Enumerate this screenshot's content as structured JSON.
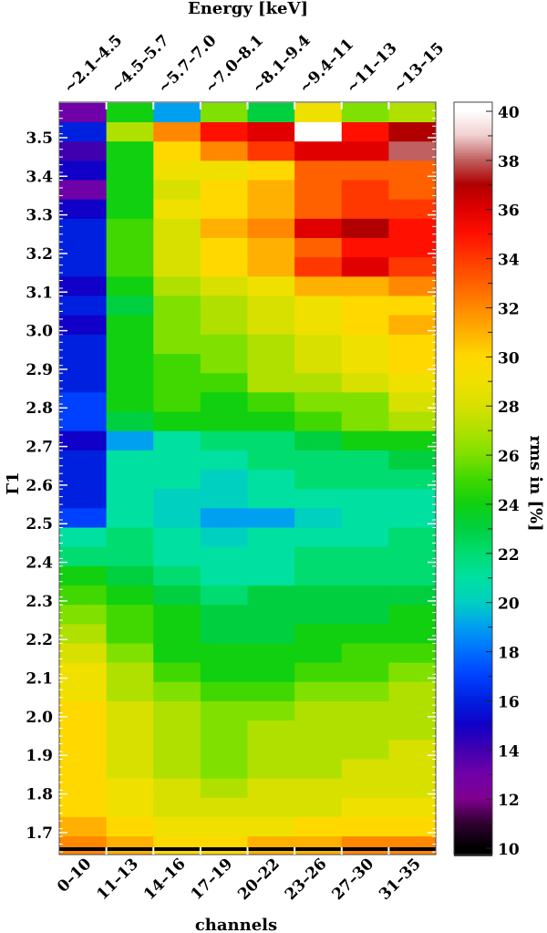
{
  "chart_data": {
    "type": "heatmap",
    "title": "",
    "xlabel": "channels",
    "x2label": "Energy [keV]",
    "ylabel": "Γ1",
    "colorbar_label": "rms in [%]",
    "x_categories": [
      "0–10",
      "11–13",
      "14–16",
      "17–19",
      "20–22",
      "23–26",
      "27–30",
      "31–35"
    ],
    "x2_categories": [
      "~2.1–4.5",
      "~4.5–5.7",
      "~5.7–7.0",
      "~7.0–8.1",
      "~8.1–9.4",
      "~9.4–11",
      "~11–13",
      "~13–15"
    ],
    "ylim": [
      1.643,
      3.592
    ],
    "y_ticks": [
      "1.7",
      "1.8",
      "1.9",
      "2.0",
      "2.1",
      "2.2",
      "2.3",
      "2.4",
      "2.5",
      "2.6",
      "2.7",
      "2.8",
      "2.9",
      "3.0",
      "3.1",
      "3.2",
      "3.3",
      "3.4",
      "3.5"
    ],
    "color_range": [
      9.7,
      40.3
    ],
    "colorbar_ticks": [
      "10",
      "12",
      "14",
      "16",
      "18",
      "20",
      "22",
      "24",
      "26",
      "28",
      "30",
      "32",
      "34",
      "36",
      "38",
      "40"
    ],
    "y_bin_centers": [
      3.565,
      3.515,
      3.465,
      3.415,
      3.365,
      3.315,
      3.265,
      3.215,
      3.165,
      3.115,
      3.065,
      3.015,
      2.965,
      2.915,
      2.865,
      2.815,
      2.765,
      2.715,
      2.665,
      2.615,
      2.565,
      2.515,
      2.465,
      2.415,
      2.365,
      2.315,
      2.265,
      2.215,
      2.165,
      2.115,
      2.065,
      2.015,
      1.965,
      1.915,
      1.865,
      1.815,
      1.765,
      1.715,
      1.665
    ],
    "y_bin_width": 0.05,
    "values": [
      [
        13,
        24,
        19,
        26,
        23,
        29,
        26,
        27
      ],
      [
        16,
        27,
        32,
        35,
        36,
        40,
        35,
        37
      ],
      [
        14,
        24,
        30,
        32,
        34,
        36,
        36,
        38
      ],
      [
        15,
        24,
        29,
        29,
        30,
        33,
        33,
        33
      ],
      [
        13,
        24,
        28,
        30,
        31,
        33,
        34,
        33
      ],
      [
        15,
        24,
        29,
        30,
        31,
        33,
        34,
        34
      ],
      [
        16,
        25,
        28,
        31,
        32,
        36,
        37,
        35
      ],
      [
        16,
        25,
        28,
        30,
        31,
        33,
        35,
        35
      ],
      [
        16,
        25,
        28,
        30,
        31,
        34,
        36,
        34
      ],
      [
        15,
        24,
        27,
        28,
        29,
        31,
        31,
        32
      ],
      [
        16,
        23,
        26,
        27,
        28,
        29,
        30,
        30
      ],
      [
        15,
        24,
        26,
        27,
        28,
        29,
        30,
        31
      ],
      [
        16,
        24,
        26,
        26,
        27,
        28,
        29,
        30
      ],
      [
        16,
        24,
        25,
        26,
        27,
        28,
        29,
        30
      ],
      [
        16,
        24,
        25,
        25,
        27,
        27,
        28,
        29
      ],
      [
        17,
        24,
        25,
        24,
        25,
        26,
        26,
        28
      ],
      [
        17,
        23,
        24,
        24,
        24,
        25,
        26,
        27
      ],
      [
        15,
        19,
        21,
        22,
        22,
        23,
        24,
        24
      ],
      [
        16,
        21,
        21,
        21,
        22,
        22,
        22,
        23
      ],
      [
        16,
        21,
        21,
        20,
        21,
        22,
        22,
        22
      ],
      [
        16,
        21,
        20,
        20,
        21,
        21,
        21,
        21
      ],
      [
        17,
        21,
        20,
        19,
        19,
        20,
        21,
        21
      ],
      [
        21,
        22,
        21,
        20,
        21,
        21,
        21,
        22
      ],
      [
        22,
        22,
        21,
        21,
        21,
        22,
        22,
        22
      ],
      [
        24,
        23,
        22,
        21,
        21,
        22,
        22,
        22
      ],
      [
        25,
        24,
        23,
        22,
        23,
        23,
        23,
        23
      ],
      [
        26,
        25,
        24,
        23,
        23,
        23,
        23,
        24
      ],
      [
        27,
        25,
        24,
        23,
        23,
        24,
        24,
        24
      ],
      [
        28,
        26,
        24,
        24,
        24,
        24,
        25,
        25
      ],
      [
        29,
        27,
        25,
        24,
        24,
        25,
        25,
        26
      ],
      [
        29,
        27,
        26,
        25,
        25,
        26,
        26,
        27
      ],
      [
        30,
        28,
        27,
        26,
        26,
        27,
        27,
        27
      ],
      [
        30,
        28,
        27,
        26,
        27,
        27,
        27,
        27
      ],
      [
        30,
        28,
        27,
        26,
        27,
        27,
        27,
        28
      ],
      [
        30,
        28,
        27,
        26,
        27,
        27,
        28,
        28
      ],
      [
        30,
        29,
        28,
        27,
        28,
        28,
        28,
        28
      ],
      [
        30,
        29,
        28,
        28,
        28,
        28,
        29,
        29
      ],
      [
        31,
        30,
        29,
        29,
        29,
        30,
        30,
        30
      ],
      [
        32,
        31,
        30,
        30,
        31,
        31,
        32,
        32
      ]
    ],
    "missing_value_color": "#000000",
    "colormap": [
      "#000000",
      "#300030",
      "#800090",
      "#7000a8",
      "#4000b0",
      "#1000c8",
      "#0020e0",
      "#0040ff",
      "#0070ff",
      "#00a0f0",
      "#00d0c0",
      "#00e0a0",
      "#00dc70",
      "#00d040",
      "#10d010",
      "#40d800",
      "#80e000",
      "#b0e000",
      "#d8e000",
      "#f0e000",
      "#ffd800",
      "#ffb000",
      "#ff8800",
      "#ff6000",
      "#ff3800",
      "#ff1000",
      "#e00000",
      "#b00000",
      "#c06060",
      "#f0d0d0",
      "#ffffff"
    ]
  }
}
